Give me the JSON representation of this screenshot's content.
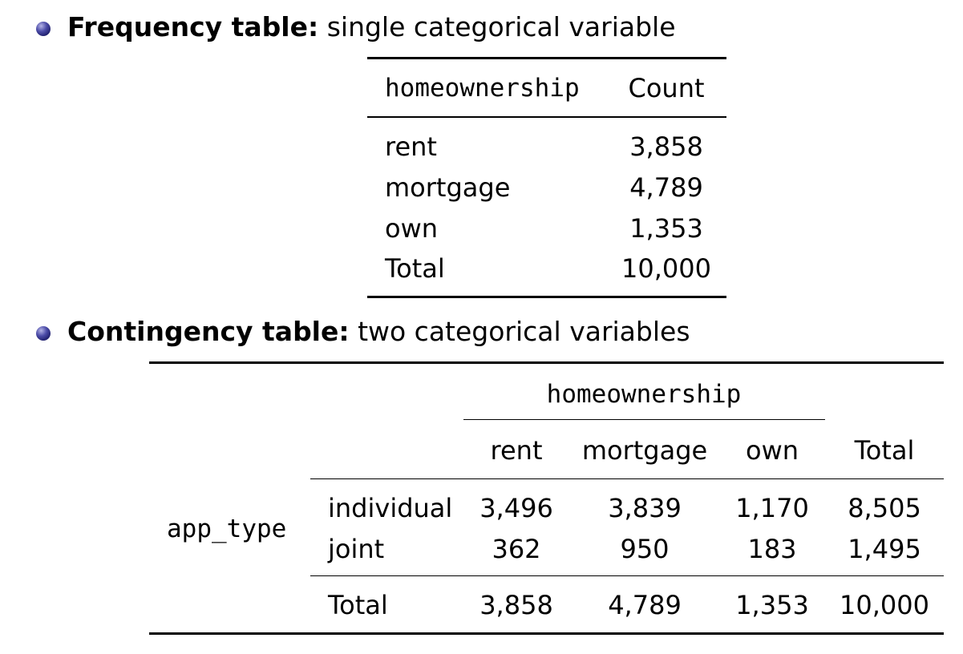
{
  "freq_section": {
    "label": "Frequency table:",
    "desc": "single categorical variable"
  },
  "freq_table": {
    "headers": [
      "homeownership",
      "Count"
    ],
    "rows": [
      {
        "category": "rent",
        "count": "3,858"
      },
      {
        "category": "mortgage",
        "count": "4,789"
      },
      {
        "category": "own",
        "count": "1,353"
      },
      {
        "category": "Total",
        "count": "10,000"
      }
    ]
  },
  "contingency_section": {
    "label": "Contingency table:",
    "desc": "two categorical variables"
  },
  "contingency_table": {
    "row_variable": "app_type",
    "column_variable": "homeownership",
    "columns": [
      "rent",
      "mortgage",
      "own",
      "Total"
    ],
    "rows": [
      {
        "label": "individual",
        "values": [
          "3,496",
          "3,839",
          "1,170",
          "8,505"
        ]
      },
      {
        "label": "joint",
        "values": [
          "362",
          "950",
          "183",
          "1,495"
        ]
      }
    ],
    "total_row": {
      "label": "Total",
      "values": [
        "3,858",
        "4,789",
        "1,353",
        "10,000"
      ]
    }
  }
}
